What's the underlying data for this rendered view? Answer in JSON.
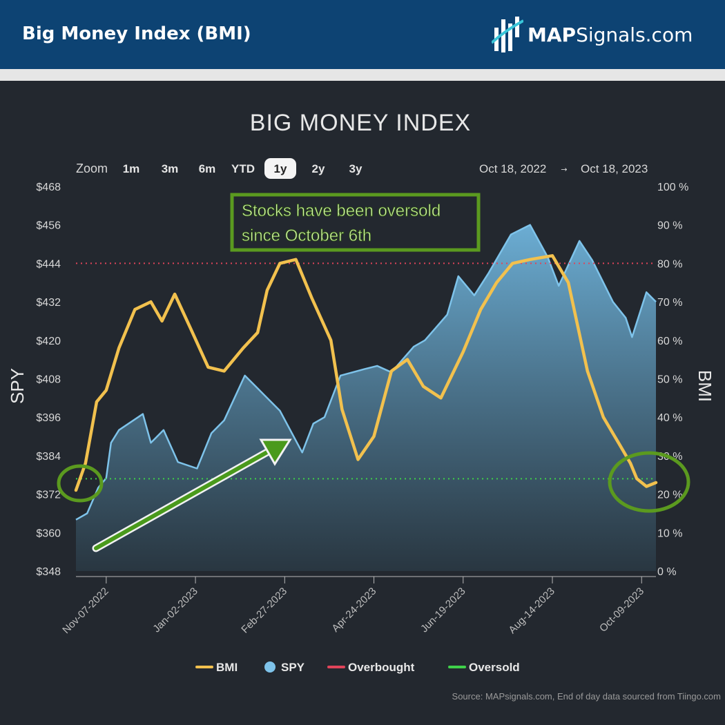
{
  "header": {
    "title": "Big Money Index (BMI)",
    "brand_bold": "MAP",
    "brand_rest": "Signals.com"
  },
  "toolbar": {
    "zoom_label": "Zoom",
    "zoom_options": [
      "1m",
      "3m",
      "6m",
      "YTD",
      "1y",
      "2y",
      "3y"
    ],
    "selected_zoom": "1y",
    "range_from": "Oct 18, 2022",
    "range_arrow": "→",
    "range_to": "Oct 18, 2023"
  },
  "annotation": {
    "line1": "Stocks have been oversold",
    "line2": "since October 6th"
  },
  "source": "Source: MAPsignals.com, End of day data sourced from Tiingo.com",
  "colors": {
    "bmi": "#f2c14e",
    "spy": "#7ec3ea",
    "overbought": "#e0445a",
    "oversold": "#3fd14a",
    "annotation": "#5b9a1f"
  },
  "chart_data": {
    "type": "line",
    "title": "BIG MONEY INDEX",
    "x_start": "2022-10-19",
    "x_end": "2023-10-18",
    "x_ticks": [
      "Nov-07-2022",
      "Jan-02-2023",
      "Feb-27-2023",
      "Apr-24-2023",
      "Jun-19-2023",
      "Aug-14-2023",
      "Oct-09-2023"
    ],
    "y_left": {
      "label": "SPY",
      "ylim": [
        348,
        468
      ],
      "ticks": [
        "$468",
        "$456",
        "$444",
        "$432",
        "$420",
        "$408",
        "$396",
        "$384",
        "$372",
        "$360",
        "$348"
      ]
    },
    "y_right": {
      "label": "BMI",
      "ylim": [
        0,
        100
      ],
      "ticks": [
        "100 %",
        "90 %",
        "80 %",
        "70 %",
        "60 %",
        "50 %",
        "40 %",
        "30 %",
        "20 %",
        "10 %",
        "0 %"
      ]
    },
    "overbought_level": 80,
    "oversold_level": 24,
    "legend": [
      "BMI",
      "SPY",
      "Overbought",
      "Oversold"
    ],
    "legend_position": "bottom",
    "series": [
      {
        "name": "BMI",
        "axis": "right",
        "x": [
          "2022-10-19",
          "2022-10-25",
          "2022-11-01",
          "2022-11-07",
          "2022-11-15",
          "2022-11-25",
          "2022-12-05",
          "2022-12-12",
          "2022-12-20",
          "2022-12-30",
          "2023-01-10",
          "2023-01-20",
          "2023-02-01",
          "2023-02-10",
          "2023-02-16",
          "2023-02-24",
          "2023-03-06",
          "2023-03-16",
          "2023-03-28",
          "2023-04-04",
          "2023-04-14",
          "2023-04-24",
          "2023-05-05",
          "2023-05-15",
          "2023-05-25",
          "2023-06-05",
          "2023-06-19",
          "2023-06-30",
          "2023-07-10",
          "2023-07-20",
          "2023-07-31",
          "2023-08-14",
          "2023-08-24",
          "2023-09-05",
          "2023-09-15",
          "2023-09-25",
          "2023-10-02",
          "2023-10-06",
          "2023-10-12",
          "2023-10-18"
        ],
        "values": [
          21,
          28,
          44,
          47,
          58,
          68,
          70,
          65,
          72,
          63,
          53,
          52,
          58,
          62,
          73,
          80,
          81,
          71,
          60,
          42,
          29,
          35,
          52,
          55,
          48,
          45,
          57,
          68,
          75,
          80,
          81,
          82,
          75,
          52,
          40,
          33,
          28,
          24,
          22,
          23
        ]
      },
      {
        "name": "SPY",
        "axis": "left",
        "x": [
          "2022-10-19",
          "2022-10-26",
          "2022-11-02",
          "2022-11-07",
          "2022-11-10",
          "2022-11-15",
          "2022-11-30",
          "2022-12-05",
          "2022-12-13",
          "2022-12-22",
          "2023-01-03",
          "2023-01-12",
          "2023-01-20",
          "2023-02-02",
          "2023-02-10",
          "2023-02-24",
          "2023-03-10",
          "2023-03-17",
          "2023-03-24",
          "2023-04-03",
          "2023-04-18",
          "2023-04-26",
          "2023-05-05",
          "2023-05-19",
          "2023-05-26",
          "2023-06-09",
          "2023-06-16",
          "2023-06-26",
          "2023-07-05",
          "2023-07-19",
          "2023-07-31",
          "2023-08-11",
          "2023-08-18",
          "2023-08-31",
          "2023-09-08",
          "2023-09-21",
          "2023-09-29",
          "2023-10-03",
          "2023-10-12",
          "2023-10-18"
        ],
        "values": [
          364,
          366,
          374,
          377,
          388,
          392,
          397,
          388,
          392,
          382,
          380,
          391,
          395,
          409,
          405,
          398,
          385,
          394,
          396,
          409,
          411,
          412,
          410,
          418,
          420,
          428,
          440,
          434,
          441,
          453,
          456,
          446,
          437,
          451,
          445,
          432,
          427,
          421,
          435,
          432
        ]
      }
    ]
  }
}
